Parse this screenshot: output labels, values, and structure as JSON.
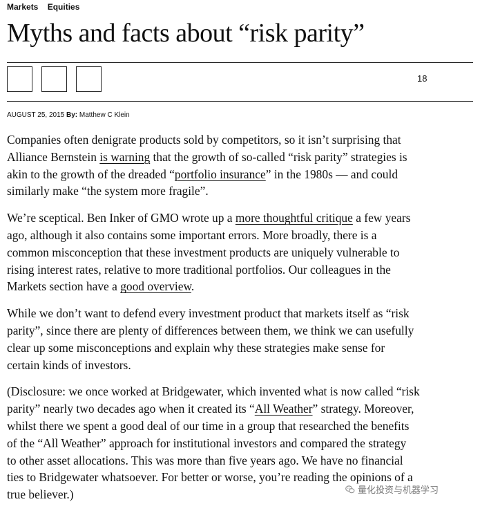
{
  "breadcrumbs": [
    "Markets",
    "Equities"
  ],
  "title": "Myths and facts about “risk parity”",
  "comment_count": "18",
  "byline": {
    "date": "AUGUST 25, 2015",
    "by": "By:",
    "author": "Matthew C Klein"
  },
  "paragraphs": [
    {
      "lines": [
        [
          "Companies often denigrate products sold by competitors, so it isn’t surprising that"
        ],
        [
          "Alliance Bernstein ",
          {
            "link": "is warning"
          },
          " that the growth of so-called “risk parity” strategies is"
        ],
        [
          "akin to the growth of the dreaded “",
          {
            "link": "portfolio insurance"
          },
          "” in the 1980s — and could"
        ],
        [
          "similarly make “the system more fragile”."
        ]
      ]
    },
    {
      "lines": [
        [
          "We’re sceptical. Ben Inker of GMO wrote up a ",
          {
            "link": "more thoughtful critique"
          },
          " a few years"
        ],
        [
          "ago, although it also contains some important errors. More broadly, there is a"
        ],
        [
          "common misconception that these investment products are uniquely vulnerable to"
        ],
        [
          "rising interest rates, relative to more traditional portfolios. Our colleagues in the"
        ],
        [
          "Markets section have a ",
          {
            "link": "good overview"
          },
          "."
        ]
      ]
    },
    {
      "lines": [
        [
          "While we don’t want to defend every investment product that markets itself as “risk"
        ],
        [
          "parity”, since there are plenty of differences between them, we think we can usefully"
        ],
        [
          "clear up some misconceptions and explain why these strategies make sense for"
        ],
        [
          "certain kinds of investors."
        ]
      ]
    },
    {
      "lines": [
        [
          "(Disclosure: we once worked at Bridgewater, which invented what is now called “risk"
        ],
        [
          "parity” nearly two decades ago when it created its “",
          {
            "link": "All Weather"
          },
          "” strategy. Moreover,"
        ],
        [
          "whilst there we spent a good deal of our time in a group that researched the benefits"
        ],
        [
          "of the “All Weather” approach for institutional investors and compared the strategy"
        ],
        [
          "to other asset allocations. This was more than five years ago. We have no financial"
        ],
        [
          "ties to Bridgewater whatsoever. For better or worse, you’re reading the opinions of a"
        ],
        [
          "true believer.)"
        ]
      ]
    }
  ],
  "watermark": "量化投资与机器学习",
  "icons": {
    "share_buttons": [
      "share-button-1",
      "share-button-2",
      "share-button-3"
    ],
    "watermark_icon": "wechat-icon"
  }
}
